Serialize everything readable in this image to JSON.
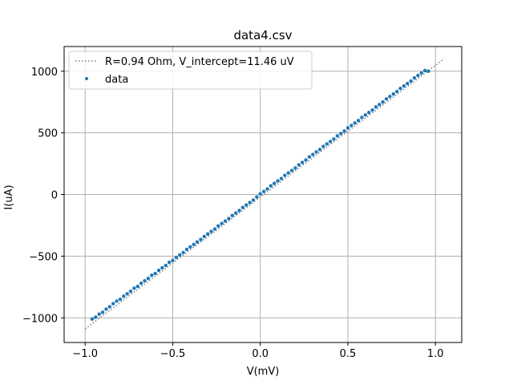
{
  "chart_data": {
    "type": "scatter",
    "title": "data4.csv",
    "xlabel": "V(mV)",
    "ylabel": "I(uA)",
    "xlim": [
      -1.12,
      1.15
    ],
    "ylim": [
      -1200,
      1200
    ],
    "xticks": [
      -1.0,
      -0.5,
      0.0,
      0.5,
      1.0
    ],
    "xtick_labels": [
      "−1.0",
      "−0.5",
      "0.0",
      "0.5",
      "1.0"
    ],
    "yticks": [
      -1000,
      -500,
      0,
      500,
      1000
    ],
    "ytick_labels": [
      "−1000",
      "−500",
      "0",
      "500",
      "1000"
    ],
    "grid": true,
    "legend_position": "top-left",
    "fit": {
      "name": "R=0.94 Ohm, V_intercept=11.46 uV",
      "style": "dotted",
      "color": "#808080",
      "x": [
        -1.0,
        1.05
      ],
      "y": [
        -1090,
        1100
      ]
    },
    "series": [
      {
        "name": "data",
        "color": "#1f77b4",
        "x": [
          -0.96,
          -0.94,
          -0.92,
          -0.9,
          -0.88,
          -0.86,
          -0.84,
          -0.82,
          -0.8,
          -0.78,
          -0.76,
          -0.74,
          -0.72,
          -0.7,
          -0.68,
          -0.66,
          -0.64,
          -0.62,
          -0.6,
          -0.58,
          -0.56,
          -0.54,
          -0.52,
          -0.5,
          -0.48,
          -0.46,
          -0.44,
          -0.42,
          -0.4,
          -0.38,
          -0.36,
          -0.34,
          -0.32,
          -0.3,
          -0.28,
          -0.26,
          -0.24,
          -0.22,
          -0.2,
          -0.18,
          -0.16,
          -0.14,
          -0.12,
          -0.1,
          -0.08,
          -0.06,
          -0.04,
          -0.02,
          0.0,
          0.02,
          0.04,
          0.06,
          0.08,
          0.1,
          0.12,
          0.14,
          0.16,
          0.18,
          0.2,
          0.22,
          0.24,
          0.26,
          0.28,
          0.3,
          0.32,
          0.34,
          0.36,
          0.38,
          0.4,
          0.42,
          0.44,
          0.46,
          0.48,
          0.5,
          0.52,
          0.54,
          0.56,
          0.58,
          0.6,
          0.62,
          0.64,
          0.66,
          0.68,
          0.7,
          0.72,
          0.74,
          0.76,
          0.78,
          0.8,
          0.82,
          0.84,
          0.86,
          0.88,
          0.9,
          0.92,
          0.94,
          0.96
        ],
        "y": [
          -1010,
          -995,
          -970,
          -955,
          -930,
          -910,
          -885,
          -865,
          -850,
          -825,
          -805,
          -785,
          -760,
          -745,
          -720,
          -700,
          -680,
          -655,
          -640,
          -615,
          -595,
          -575,
          -550,
          -535,
          -510,
          -490,
          -470,
          -445,
          -425,
          -405,
          -385,
          -365,
          -340,
          -320,
          -300,
          -280,
          -255,
          -235,
          -215,
          -195,
          -170,
          -150,
          -130,
          -105,
          -85,
          -65,
          -45,
          -20,
          5,
          25,
          45,
          70,
          90,
          110,
          130,
          155,
          175,
          195,
          215,
          240,
          260,
          280,
          305,
          325,
          345,
          365,
          390,
          410,
          430,
          450,
          475,
          495,
          515,
          540,
          560,
          580,
          600,
          625,
          645,
          665,
          685,
          710,
          730,
          750,
          775,
          795,
          815,
          835,
          860,
          880,
          900,
          920,
          945,
          965,
          985,
          1005,
          1000
        ]
      }
    ]
  }
}
